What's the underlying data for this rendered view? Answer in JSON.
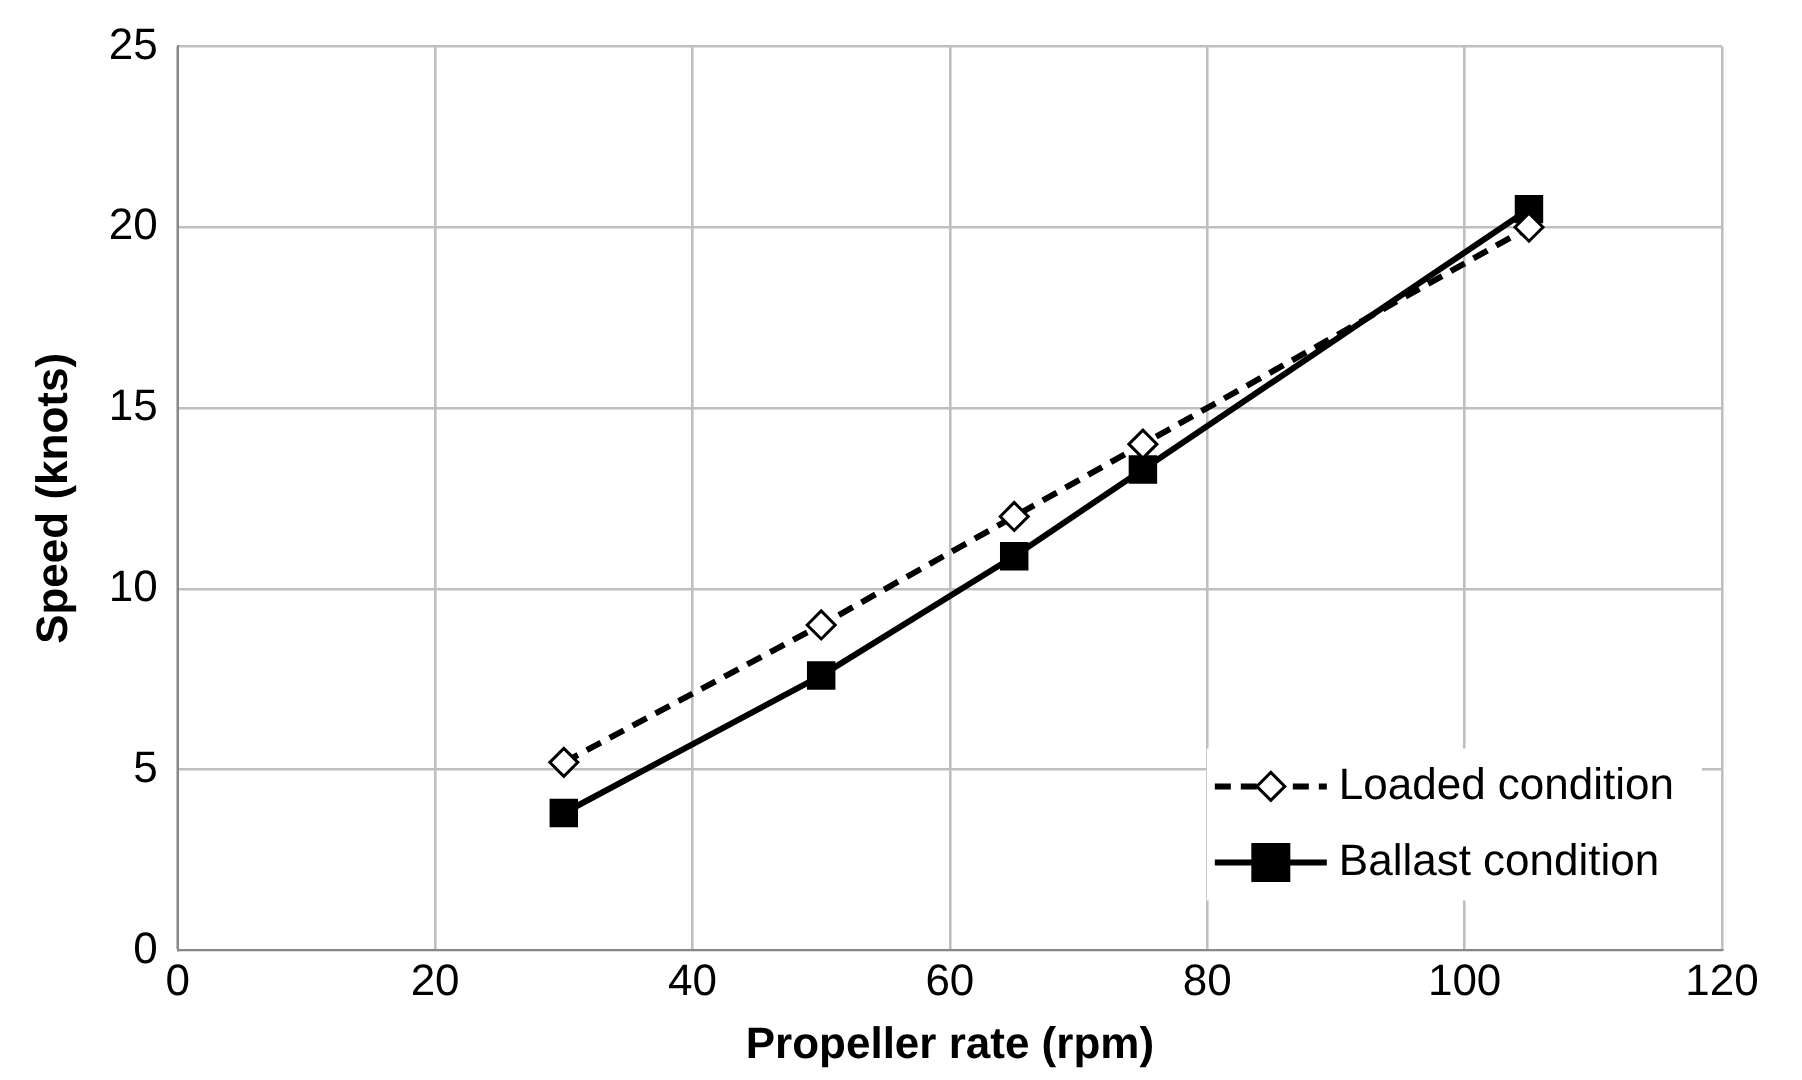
{
  "chart_data": {
    "type": "line",
    "xlabel": "Propeller rate (rpm)",
    "ylabel": "Speed (knots)",
    "x": [
      30,
      50,
      65,
      75,
      105
    ],
    "series": [
      {
        "name": "Loaded condition",
        "color": "#000000",
        "values": [
          5.2,
          9.0,
          12.0,
          14.0,
          20.0
        ],
        "marker": "diamond",
        "line_style": "dashed"
      },
      {
        "name": "Ballast condition",
        "color": "#000000",
        "values": [
          3.8,
          7.6,
          10.9,
          13.3,
          20.5
        ],
        "marker": "square",
        "line_style": "solid"
      }
    ],
    "xlim": [
      0,
      120
    ],
    "xticks": [
      0,
      20,
      40,
      60,
      80,
      100,
      120
    ],
    "ylim": [
      0,
      25
    ],
    "yticks": [
      0,
      5,
      10,
      15,
      20,
      25
    ],
    "grid": true,
    "legend": "bottom right"
  }
}
